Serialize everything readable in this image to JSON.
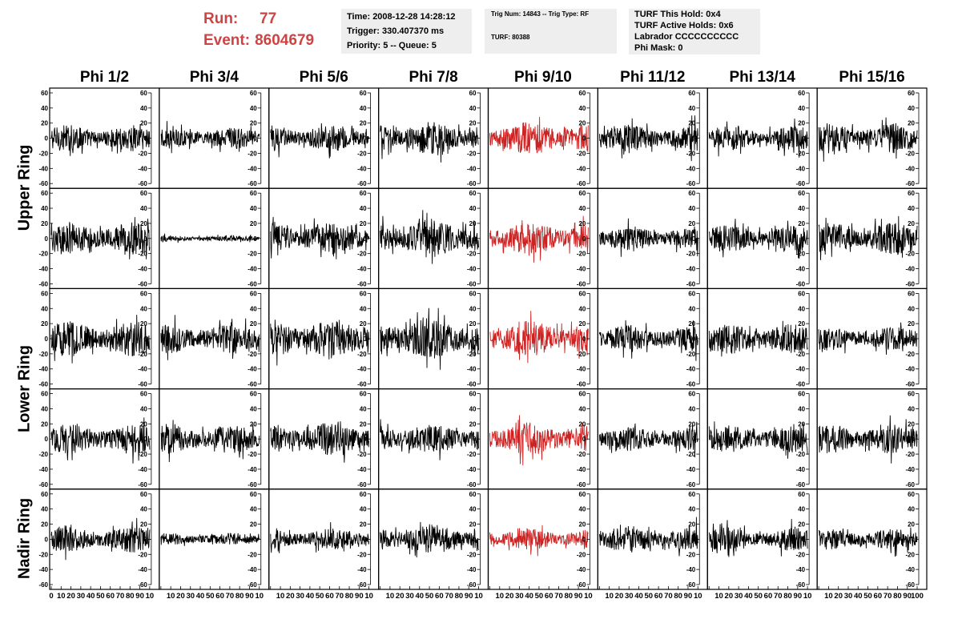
{
  "header": {
    "run_label": "Run:",
    "run_value": "77",
    "event_label": "Event:",
    "event_value": "8604679",
    "time_line": "Time: 2008-12-28 14:28:12",
    "trigger_line": "Trigger: 330.407370 ms",
    "priority_line": "Priority: 5 -- Queue: 5",
    "trig_line": "Trig Num: 14843 -- Trig Type: RF",
    "turf_line": "TURF: 80388",
    "turf_hold_line": "TURF This Hold: 0x4",
    "turf_active_line": "TURF Active Holds: 0x6",
    "labrador_line": "Labrador CCCCCCCCCC",
    "phi_mask_line": "Phi Mask: 0"
  },
  "colors": {
    "highlight": "#cc2222",
    "trace": "#000000",
    "run_text": "#cc4444",
    "box_bg": "#eeeeee"
  },
  "chart_data": {
    "type": "line",
    "description_layout": "5 rows x 8 columns grid of waveform panels",
    "columns": [
      "Phi 1/2",
      "Phi 3/4",
      "Phi 5/6",
      "Phi 7/8",
      "Phi 9/10",
      "Phi 11/12",
      "Phi 13/14",
      "Phi 15/16"
    ],
    "ring_labels": [
      "Upper Ring",
      "Lower Ring",
      "Nadir Ring"
    ],
    "ring_rows": [
      [
        0,
        1
      ],
      [
        2,
        3
      ],
      [
        4,
        4
      ]
    ],
    "highlighted_column": 4,
    "ylim": [
      -60,
      60
    ],
    "yticks": [
      -60,
      -40,
      -20,
      0,
      20,
      40,
      60
    ],
    "xlim": [
      0,
      100
    ],
    "xticks": [
      0,
      10,
      20,
      30,
      40,
      50,
      60,
      70,
      80,
      90,
      100
    ],
    "xtick_labels_panel": [
      "0",
      "10",
      "20",
      "30",
      "40",
      "50",
      "60",
      "70",
      "80",
      "90",
      "10"
    ],
    "xtick_labels_last": [
      "0",
      "10",
      "20",
      "30",
      "40",
      "50",
      "60",
      "70",
      "80",
      "90",
      "100"
    ],
    "samples_per_trace": 260,
    "amplitudes": [
      [
        18,
        14,
        18,
        22,
        22,
        18,
        16,
        20
      ],
      [
        22,
        4,
        22,
        26,
        22,
        16,
        18,
        22
      ],
      [
        24,
        20,
        26,
        28,
        24,
        18,
        20,
        16
      ],
      [
        20,
        20,
        22,
        20,
        22,
        16,
        18,
        20
      ],
      [
        18,
        8,
        14,
        20,
        14,
        18,
        16,
        14
      ]
    ],
    "note": "Waveforms are noise-like RF traces centered at 0 in the range ±60."
  }
}
